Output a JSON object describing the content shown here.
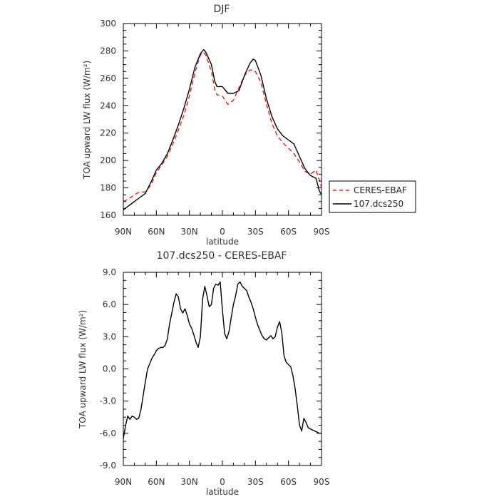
{
  "chart_data": [
    {
      "type": "line",
      "title": "DJF",
      "xlabel": "latitude",
      "ylabel": "TOA upward LW flux (W/m²)",
      "xlim": [
        90,
        -90
      ],
      "ylim": [
        160,
        300
      ],
      "xticks": [
        {
          "value": 90,
          "label": "90N"
        },
        {
          "value": 60,
          "label": "60N"
        },
        {
          "value": 30,
          "label": "30N"
        },
        {
          "value": 0,
          "label": "0"
        },
        {
          "value": -30,
          "label": "30S"
        },
        {
          "value": -60,
          "label": "60S"
        },
        {
          "value": -90,
          "label": "90S"
        }
      ],
      "yticks": [
        160,
        180,
        200,
        220,
        240,
        260,
        280,
        300
      ],
      "ytick_labels": [
        "160",
        "180",
        "200",
        "220",
        "240",
        "260",
        "280",
        "300"
      ],
      "grid": false,
      "legend_position": "outside right",
      "series": [
        {
          "name": "CERES-EBAF",
          "color": "#e31a1c",
          "dash": "dashed",
          "x": [
            90,
            85,
            80,
            75,
            70,
            65,
            60,
            55,
            50,
            45,
            40,
            35,
            30,
            25,
            20,
            17,
            15,
            10,
            7,
            5,
            0,
            -5,
            -10,
            -15,
            -20,
            -25,
            -28,
            -30,
            -35,
            -40,
            -45,
            -50,
            -55,
            -60,
            -65,
            -70,
            -75,
            -80,
            -85,
            -88,
            -90
          ],
          "y": [
            170,
            172,
            175,
            177,
            177,
            182,
            191,
            197,
            203,
            212,
            222,
            233,
            247,
            264,
            277,
            279,
            277,
            265,
            252,
            248,
            247,
            241,
            244,
            253,
            262,
            266,
            266,
            265,
            257,
            241,
            227,
            218,
            213,
            209,
            205,
            199,
            192,
            190,
            193,
            186,
            180
          ]
        },
        {
          "name": "107.dcs250",
          "color": "#000000",
          "dash": "solid",
          "x": [
            90,
            85,
            80,
            75,
            70,
            65,
            60,
            55,
            50,
            45,
            40,
            35,
            30,
            25,
            20,
            17,
            15,
            10,
            7,
            5,
            0,
            -5,
            -10,
            -15,
            -20,
            -25,
            -28,
            -30,
            -35,
            -40,
            -45,
            -50,
            -55,
            -60,
            -65,
            -70,
            -75,
            -80,
            -85,
            -88,
            -90
          ],
          "y": [
            164,
            167,
            170,
            173,
            176,
            184,
            193,
            198,
            205,
            215,
            226,
            238,
            252,
            268,
            278,
            281,
            279,
            270,
            258,
            254,
            254,
            249,
            249,
            251,
            262,
            271,
            274,
            273,
            262,
            245,
            232,
            223,
            218,
            215,
            212,
            203,
            194,
            189,
            187,
            178,
            175
          ]
        }
      ]
    },
    {
      "type": "line",
      "title": "107.dcs250 - CERES-EBAF",
      "xlabel": "latitude",
      "ylabel": "TOA upward LW flux (W/m²)",
      "xlim": [
        90,
        -90
      ],
      "ylim": [
        -9,
        9
      ],
      "xticks": [
        {
          "value": 90,
          "label": "90N"
        },
        {
          "value": 60,
          "label": "60N"
        },
        {
          "value": 30,
          "label": "30N"
        },
        {
          "value": 0,
          "label": "0"
        },
        {
          "value": -30,
          "label": "30S"
        },
        {
          "value": -60,
          "label": "60S"
        },
        {
          "value": -90,
          "label": "90S"
        }
      ],
      "yticks": [
        -9,
        -6,
        -3,
        0,
        3,
        6,
        9
      ],
      "ytick_labels": [
        "-9.0",
        "-6.0",
        "-3.0",
        "0.0",
        "3.0",
        "6.0",
        "9.0"
      ],
      "grid": false,
      "series": [
        {
          "name": "",
          "color": "#000000",
          "dash": "solid",
          "x": [
            90,
            88,
            86,
            84,
            82,
            80,
            78,
            76,
            74,
            72,
            70,
            68,
            66,
            64,
            62,
            60,
            58,
            56,
            54,
            52,
            50,
            48,
            46,
            44,
            42,
            40,
            38,
            36,
            34,
            32,
            30,
            28,
            26,
            24,
            22,
            20,
            18,
            16,
            14,
            12,
            10,
            8,
            6,
            4,
            2,
            0,
            -2,
            -4,
            -6,
            -8,
            -10,
            -12,
            -14,
            -16,
            -18,
            -20,
            -22,
            -24,
            -26,
            -28,
            -30,
            -32,
            -34,
            -36,
            -38,
            -40,
            -42,
            -44,
            -46,
            -48,
            -50,
            -52,
            -54,
            -56,
            -58,
            -60,
            -62,
            -64,
            -66,
            -68,
            -70,
            -72,
            -74,
            -76,
            -78,
            -80,
            -82,
            -84,
            -86,
            -88,
            -90
          ],
          "y": [
            -6.5,
            -5.3,
            -4.4,
            -4.7,
            -4.4,
            -4.5,
            -4.7,
            -4.6,
            -3.8,
            -2.5,
            -1.2,
            0.0,
            0.5,
            1.0,
            1.3,
            1.7,
            1.9,
            2.0,
            2.0,
            2.2,
            2.8,
            4.2,
            5.2,
            6.2,
            7.0,
            6.7,
            5.6,
            5.2,
            5.6,
            5.0,
            4.2,
            3.8,
            3.2,
            2.5,
            2.0,
            3.0,
            6.5,
            7.7,
            6.8,
            5.8,
            6.0,
            7.5,
            7.9,
            7.8,
            8.1,
            5.5,
            3.3,
            2.8,
            3.5,
            4.8,
            6.0,
            6.8,
            7.9,
            8.1,
            7.7,
            7.5,
            7.3,
            6.7,
            6.2,
            5.6,
            4.8,
            4.1,
            3.6,
            3.1,
            2.8,
            2.7,
            2.9,
            3.1,
            2.8,
            3.0,
            3.9,
            4.4,
            3.3,
            1.2,
            0.6,
            0.4,
            0.2,
            -0.6,
            -1.8,
            -3.4,
            -5.2,
            -5.8,
            -4.6,
            -5.0,
            -5.5,
            -5.6,
            -5.7,
            -5.8,
            -5.9,
            -6.0,
            -6.0
          ]
        }
      ]
    }
  ]
}
